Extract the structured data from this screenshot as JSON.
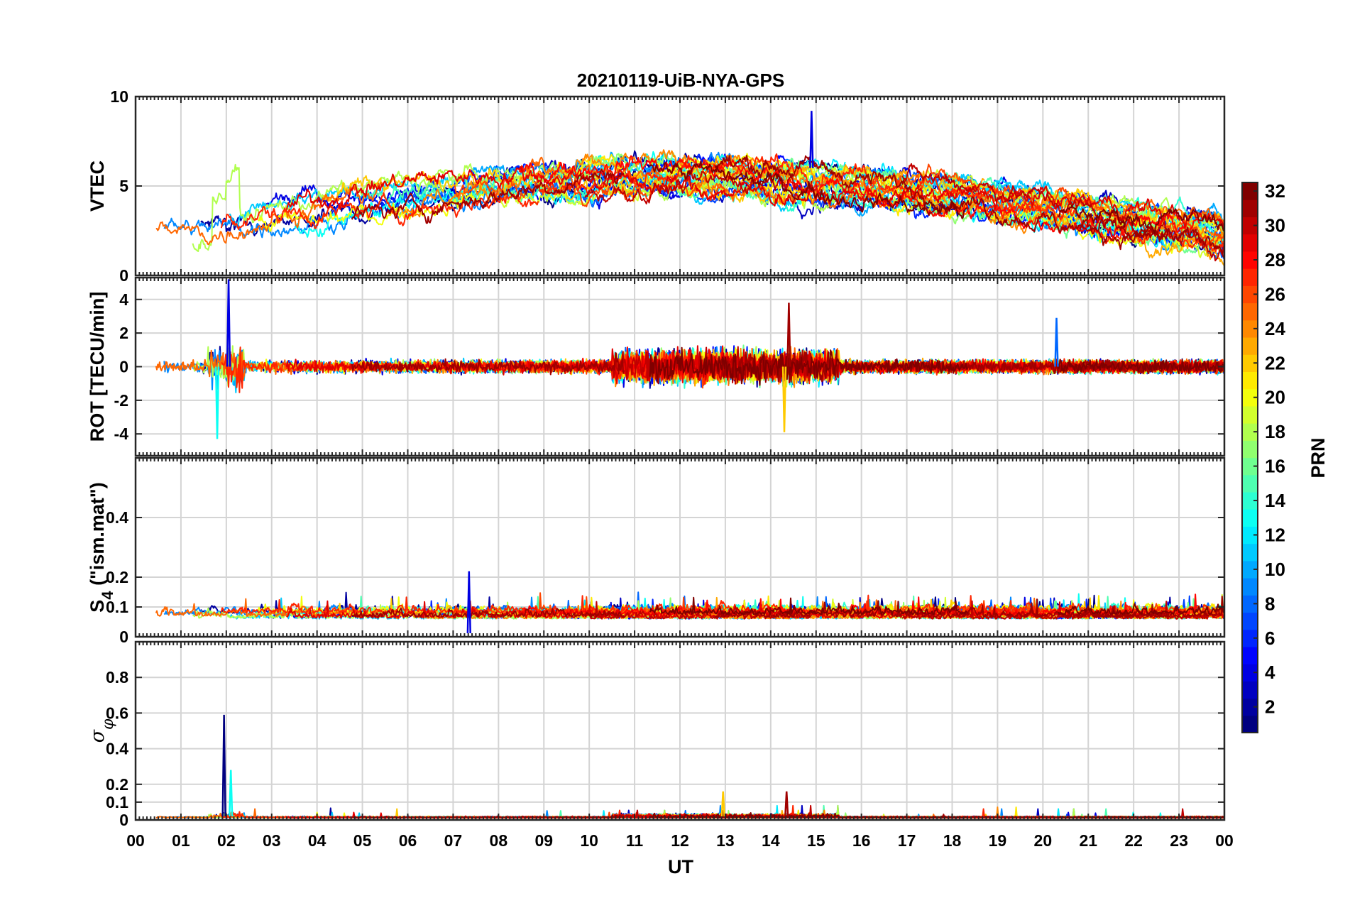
{
  "chart_data": {
    "type": "line",
    "title": "20210119-UiB-NYA-GPS",
    "xlabel": "UT",
    "x_tick_labels": [
      "00",
      "01",
      "02",
      "03",
      "04",
      "05",
      "06",
      "07",
      "08",
      "09",
      "10",
      "11",
      "12",
      "13",
      "14",
      "15",
      "16",
      "17",
      "18",
      "19",
      "20",
      "21",
      "22",
      "23",
      "00"
    ],
    "xlim_hours": [
      0,
      24
    ],
    "grid": true,
    "colorbar": {
      "label": "PRN",
      "range": [
        1,
        32
      ],
      "ticks": [
        2,
        4,
        6,
        8,
        10,
        12,
        14,
        16,
        18,
        20,
        22,
        24,
        26,
        28,
        30,
        32
      ],
      "tick_labels": [
        "2",
        "4",
        "6",
        "8",
        "10",
        "12",
        "14",
        "16",
        "18",
        "20",
        "22",
        "24",
        "26",
        "28",
        "30",
        "32"
      ],
      "colormap": "jet"
    },
    "panels": [
      {
        "name": "vtec",
        "ylabel": "VTEC",
        "ylim": [
          0,
          10
        ],
        "yticks": [
          0,
          5,
          10
        ],
        "ytick_labels": [
          "0",
          "5",
          "10"
        ],
        "typical_range": [
          1.2,
          9.2
        ],
        "peak": {
          "time_ut": 14.9,
          "value": 9.2
        },
        "series_summary": "Per-PRN VTEC arcs around 2-4 before 02 UT, rising to 5-7 between 04 and 16 UT, declining to about 3 near 24 UT"
      },
      {
        "name": "rot",
        "ylabel": "ROT [TECU/min]",
        "ylim": [
          -5.3,
          5.3
        ],
        "yticks": [
          -4,
          -2,
          0,
          2,
          4
        ],
        "ytick_labels": [
          "-4",
          "-2",
          "0",
          "2",
          "4"
        ],
        "peaks": [
          {
            "time_ut": 2.05,
            "value": 5.2
          },
          {
            "time_ut": 1.8,
            "value": -4.3
          },
          {
            "time_ut": 14.3,
            "value": -3.9
          },
          {
            "time_ut": 14.4,
            "value": 3.8
          },
          {
            "time_ut": 20.3,
            "value": 2.9
          }
        ],
        "series_summary": "Rate of TEC fluctuating about 0, enhanced activity 02 UT and 11-15 UT"
      },
      {
        "name": "s4",
        "ylabel": "S4 (\"ism.mat\")",
        "ylabel_main": "S",
        "ylabel_sub": "4",
        "ylabel_rest": " (\"ism.mat\")",
        "ylim": [
          0,
          0.6
        ],
        "yticks": [
          0,
          0.1,
          0.2,
          0.4
        ],
        "ytick_labels": [
          "0",
          "0.1",
          "0.2",
          "0.4"
        ],
        "typical_range": [
          0.04,
          0.12
        ],
        "peak": {
          "time_ut": 7.35,
          "value": 0.22
        },
        "series_summary": "Amplitude scintillation index S4 mostly 0.04-0.12 with spikes up to about 0.2"
      },
      {
        "name": "sigma_phi",
        "ylabel": "σφ",
        "ylabel_main": "σ",
        "ylabel_sub": "φ",
        "ylim": [
          0,
          1
        ],
        "yticks": [
          0,
          0.1,
          0.2,
          0.4,
          0.6,
          0.8
        ],
        "ytick_labels": [
          "0",
          "0.1",
          "0.2",
          "0.4",
          "0.6",
          "0.8"
        ],
        "peaks": [
          {
            "time_ut": 1.95,
            "value": 0.59
          },
          {
            "time_ut": 2.1,
            "value": 0.28
          },
          {
            "time_ut": 12.95,
            "value": 0.16
          },
          {
            "time_ut": 14.35,
            "value": 0.16
          }
        ],
        "series_summary": "Phase scintillation index mostly below 0.05, spike to 0.59 near 02 UT"
      }
    ]
  }
}
